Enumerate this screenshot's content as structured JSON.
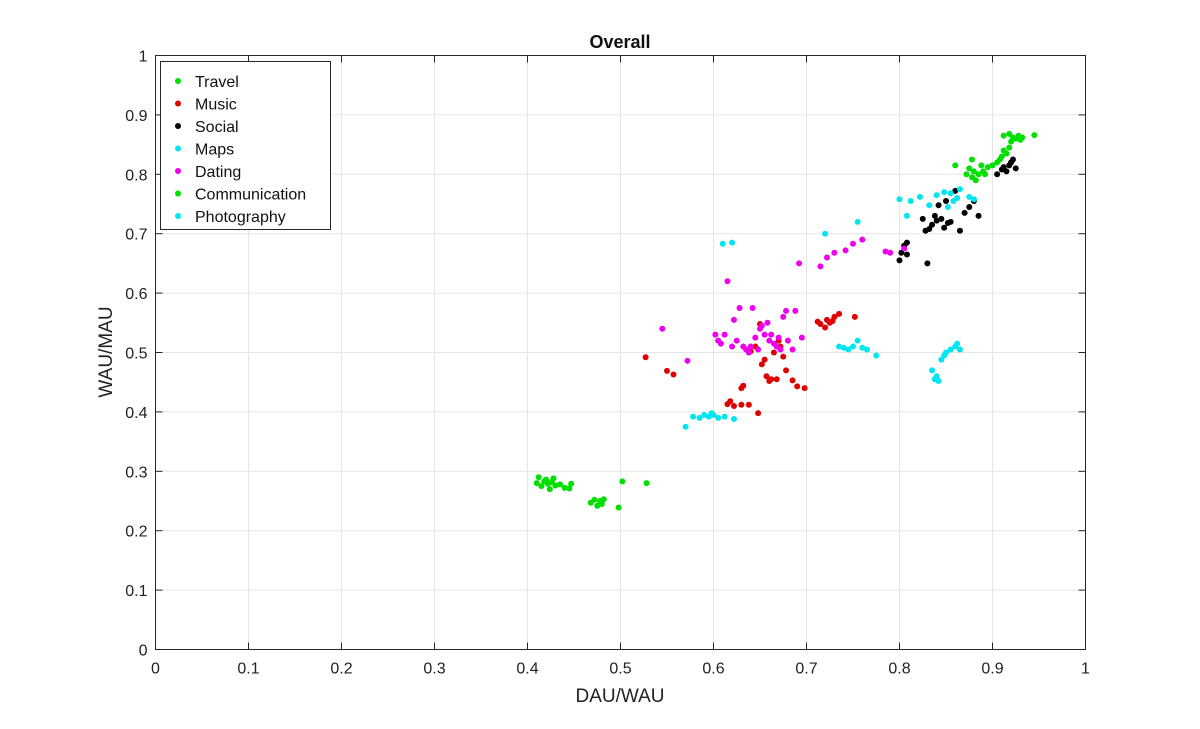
{
  "chart_data": {
    "type": "scatter",
    "title": "Overall",
    "xlabel": "DAU/WAU",
    "ylabel": "WAU/MAU",
    "xlim": [
      0,
      1
    ],
    "ylim": [
      0,
      1
    ],
    "xticks": [
      "0",
      "0.1",
      "0.2",
      "0.3",
      "0.4",
      "0.5",
      "0.6",
      "0.7",
      "0.8",
      "0.9",
      "1"
    ],
    "yticks": [
      "0",
      "0.1",
      "0.2",
      "0.3",
      "0.4",
      "0.5",
      "0.6",
      "0.7",
      "0.8",
      "0.9",
      "1"
    ],
    "grid": true,
    "legend_position": "top-left",
    "series": [
      {
        "name": "Travel",
        "color": "#00e000",
        "points": [
          [
            0.41,
            0.28
          ],
          [
            0.412,
            0.29
          ],
          [
            0.415,
            0.275
          ],
          [
            0.418,
            0.283
          ],
          [
            0.42,
            0.286
          ],
          [
            0.422,
            0.279
          ],
          [
            0.424,
            0.27
          ],
          [
            0.426,
            0.282
          ],
          [
            0.428,
            0.288
          ],
          [
            0.43,
            0.276
          ],
          [
            0.435,
            0.278
          ],
          [
            0.44,
            0.272
          ],
          [
            0.447,
            0.279
          ],
          [
            0.445,
            0.271
          ],
          [
            0.468,
            0.247
          ],
          [
            0.472,
            0.252
          ],
          [
            0.475,
            0.242
          ],
          [
            0.478,
            0.25
          ],
          [
            0.48,
            0.245
          ],
          [
            0.482,
            0.253
          ],
          [
            0.498,
            0.239
          ],
          [
            0.502,
            0.283
          ],
          [
            0.528,
            0.28
          ]
        ]
      },
      {
        "name": "Music",
        "color": "#e00000",
        "points": [
          [
            0.527,
            0.492
          ],
          [
            0.55,
            0.469
          ],
          [
            0.557,
            0.463
          ],
          [
            0.615,
            0.413
          ],
          [
            0.618,
            0.418
          ],
          [
            0.622,
            0.41
          ],
          [
            0.63,
            0.412
          ],
          [
            0.63,
            0.44
          ],
          [
            0.632,
            0.444
          ],
          [
            0.638,
            0.412
          ],
          [
            0.64,
            0.502
          ],
          [
            0.645,
            0.51
          ],
          [
            0.648,
            0.398
          ],
          [
            0.65,
            0.548
          ],
          [
            0.652,
            0.48
          ],
          [
            0.655,
            0.488
          ],
          [
            0.657,
            0.46
          ],
          [
            0.66,
            0.452
          ],
          [
            0.662,
            0.455
          ],
          [
            0.665,
            0.5
          ],
          [
            0.668,
            0.455
          ],
          [
            0.67,
            0.52
          ],
          [
            0.672,
            0.51
          ],
          [
            0.675,
            0.493
          ],
          [
            0.678,
            0.47
          ],
          [
            0.685,
            0.453
          ],
          [
            0.69,
            0.443
          ],
          [
            0.698,
            0.44
          ],
          [
            0.712,
            0.552
          ],
          [
            0.715,
            0.548
          ],
          [
            0.72,
            0.542
          ],
          [
            0.722,
            0.555
          ],
          [
            0.725,
            0.55
          ],
          [
            0.728,
            0.553
          ],
          [
            0.73,
            0.56
          ],
          [
            0.735,
            0.565
          ],
          [
            0.752,
            0.56
          ]
        ]
      },
      {
        "name": "Social",
        "color": "#000000",
        "points": [
          [
            0.8,
            0.655
          ],
          [
            0.802,
            0.668
          ],
          [
            0.805,
            0.68
          ],
          [
            0.808,
            0.665
          ],
          [
            0.808,
            0.685
          ],
          [
            0.825,
            0.725
          ],
          [
            0.828,
            0.705
          ],
          [
            0.83,
            0.65
          ],
          [
            0.832,
            0.708
          ],
          [
            0.835,
            0.715
          ],
          [
            0.838,
            0.73
          ],
          [
            0.84,
            0.722
          ],
          [
            0.842,
            0.748
          ],
          [
            0.845,
            0.725
          ],
          [
            0.848,
            0.71
          ],
          [
            0.85,
            0.755
          ],
          [
            0.852,
            0.718
          ],
          [
            0.855,
            0.72
          ],
          [
            0.86,
            0.772
          ],
          [
            0.865,
            0.705
          ],
          [
            0.87,
            0.735
          ],
          [
            0.875,
            0.745
          ],
          [
            0.88,
            0.755
          ],
          [
            0.885,
            0.73
          ],
          [
            0.905,
            0.8
          ],
          [
            0.91,
            0.808
          ],
          [
            0.912,
            0.812
          ],
          [
            0.915,
            0.805
          ],
          [
            0.918,
            0.815
          ],
          [
            0.92,
            0.82
          ],
          [
            0.922,
            0.825
          ],
          [
            0.925,
            0.81
          ]
        ]
      },
      {
        "name": "Maps",
        "color": "#00e6f0",
        "points": [
          [
            0.57,
            0.375
          ],
          [
            0.578,
            0.392
          ],
          [
            0.585,
            0.39
          ],
          [
            0.59,
            0.395
          ],
          [
            0.595,
            0.392
          ],
          [
            0.598,
            0.398
          ],
          [
            0.6,
            0.395
          ],
          [
            0.605,
            0.39
          ],
          [
            0.612,
            0.392
          ],
          [
            0.622,
            0.388
          ],
          [
            0.735,
            0.51
          ],
          [
            0.74,
            0.508
          ],
          [
            0.745,
            0.505
          ],
          [
            0.75,
            0.51
          ],
          [
            0.755,
            0.52
          ],
          [
            0.76,
            0.508
          ],
          [
            0.765,
            0.505
          ],
          [
            0.775,
            0.495
          ],
          [
            0.835,
            0.47
          ],
          [
            0.838,
            0.455
          ],
          [
            0.84,
            0.46
          ],
          [
            0.842,
            0.452
          ],
          [
            0.845,
            0.488
          ],
          [
            0.848,
            0.495
          ],
          [
            0.85,
            0.5
          ],
          [
            0.855,
            0.505
          ],
          [
            0.86,
            0.51
          ],
          [
            0.862,
            0.515
          ],
          [
            0.865,
            0.505
          ]
        ]
      },
      {
        "name": "Dating",
        "color": "#ee00ee",
        "points": [
          [
            0.545,
            0.54
          ],
          [
            0.572,
            0.486
          ],
          [
            0.602,
            0.53
          ],
          [
            0.605,
            0.52
          ],
          [
            0.608,
            0.515
          ],
          [
            0.612,
            0.53
          ],
          [
            0.615,
            0.62
          ],
          [
            0.62,
            0.51
          ],
          [
            0.622,
            0.555
          ],
          [
            0.625,
            0.52
          ],
          [
            0.628,
            0.575
          ],
          [
            0.632,
            0.51
          ],
          [
            0.635,
            0.505
          ],
          [
            0.638,
            0.5
          ],
          [
            0.64,
            0.51
          ],
          [
            0.642,
            0.575
          ],
          [
            0.645,
            0.525
          ],
          [
            0.648,
            0.505
          ],
          [
            0.65,
            0.54
          ],
          [
            0.652,
            0.545
          ],
          [
            0.655,
            0.53
          ],
          [
            0.658,
            0.55
          ],
          [
            0.66,
            0.52
          ],
          [
            0.662,
            0.53
          ],
          [
            0.665,
            0.515
          ],
          [
            0.668,
            0.51
          ],
          [
            0.67,
            0.525
          ],
          [
            0.672,
            0.505
          ],
          [
            0.675,
            0.56
          ],
          [
            0.678,
            0.57
          ],
          [
            0.68,
            0.52
          ],
          [
            0.685,
            0.505
          ],
          [
            0.688,
            0.57
          ],
          [
            0.692,
            0.65
          ],
          [
            0.695,
            0.525
          ],
          [
            0.715,
            0.645
          ],
          [
            0.722,
            0.66
          ],
          [
            0.73,
            0.668
          ],
          [
            0.742,
            0.672
          ],
          [
            0.75,
            0.683
          ],
          [
            0.76,
            0.69
          ],
          [
            0.785,
            0.67
          ],
          [
            0.79,
            0.668
          ],
          [
            0.805,
            0.675
          ]
        ]
      },
      {
        "name": "Communication",
        "color": "#00e000",
        "points": [
          [
            0.86,
            0.815
          ],
          [
            0.872,
            0.8
          ],
          [
            0.875,
            0.81
          ],
          [
            0.878,
            0.795
          ],
          [
            0.88,
            0.805
          ],
          [
            0.882,
            0.79
          ],
          [
            0.885,
            0.8
          ],
          [
            0.888,
            0.815
          ],
          [
            0.89,
            0.805
          ],
          [
            0.892,
            0.8
          ],
          [
            0.878,
            0.825
          ],
          [
            0.895,
            0.812
          ],
          [
            0.9,
            0.815
          ],
          [
            0.905,
            0.82
          ],
          [
            0.908,
            0.825
          ],
          [
            0.91,
            0.83
          ],
          [
            0.912,
            0.84
          ],
          [
            0.915,
            0.835
          ],
          [
            0.918,
            0.845
          ],
          [
            0.92,
            0.855
          ],
          [
            0.922,
            0.862
          ],
          [
            0.925,
            0.86
          ],
          [
            0.928,
            0.865
          ],
          [
            0.93,
            0.858
          ],
          [
            0.932,
            0.862
          ],
          [
            0.945,
            0.866
          ],
          [
            0.912,
            0.865
          ],
          [
            0.918,
            0.868
          ]
        ]
      },
      {
        "name": "Photography",
        "color": "#00e6f0",
        "points": [
          [
            0.61,
            0.683
          ],
          [
            0.62,
            0.685
          ],
          [
            0.72,
            0.7
          ],
          [
            0.755,
            0.72
          ],
          [
            0.8,
            0.758
          ],
          [
            0.808,
            0.73
          ],
          [
            0.812,
            0.755
          ],
          [
            0.822,
            0.762
          ],
          [
            0.832,
            0.748
          ],
          [
            0.84,
            0.765
          ],
          [
            0.848,
            0.77
          ],
          [
            0.852,
            0.745
          ],
          [
            0.855,
            0.768
          ],
          [
            0.858,
            0.755
          ],
          [
            0.862,
            0.76
          ],
          [
            0.875,
            0.762
          ],
          [
            0.88,
            0.758
          ],
          [
            0.865,
            0.775
          ]
        ]
      }
    ]
  }
}
